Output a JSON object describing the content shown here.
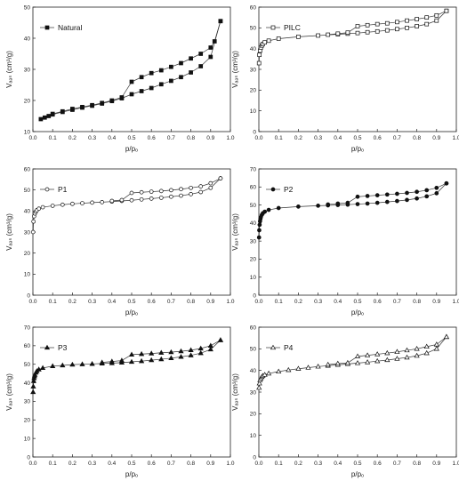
{
  "chart_data": [
    {
      "type": "line",
      "legend": "Natural",
      "marker": "square",
      "filled": true,
      "xlabel": "p/pₒ",
      "ylabel": "Vₐₔₛ (cm³/g)",
      "xlim": [
        0.0,
        1.0
      ],
      "ylim": [
        10,
        50
      ],
      "xticks": [
        "0.0",
        "0.1",
        "0.2",
        "0.3",
        "0.4",
        "0.5",
        "0.6",
        "0.7",
        "0.8",
        "0.9",
        "1.0"
      ],
      "yticks": [
        "10",
        "20",
        "30",
        "40",
        "50"
      ],
      "series": [
        {
          "name": "Natural",
          "x": [
            0.04,
            0.06,
            0.08,
            0.1,
            0.15,
            0.2,
            0.25,
            0.3,
            0.35,
            0.4,
            0.45,
            0.5,
            0.55,
            0.6,
            0.65,
            0.7,
            0.75,
            0.8,
            0.85,
            0.9,
            0.95
          ],
          "y": [
            14,
            14.5,
            15,
            15.5,
            16.3,
            17,
            17.7,
            18.3,
            19,
            19.8,
            20.7,
            22,
            23,
            24,
            25.2,
            26.3,
            27.5,
            29,
            31,
            34,
            45.5
          ]
        },
        {
          "name": "",
          "x": [
            0.95,
            0.92,
            0.9,
            0.85,
            0.8,
            0.75,
            0.7,
            0.65,
            0.6,
            0.55,
            0.5,
            0.45,
            0.4,
            0.35,
            0.3,
            0.25,
            0.2,
            0.15,
            0.1
          ],
          "y": [
            45.5,
            39,
            37,
            35,
            33.5,
            32,
            30.8,
            29.7,
            28.8,
            27.5,
            26,
            21,
            20,
            19.2,
            18.5,
            17.9,
            17.3,
            16.5,
            15.7
          ]
        }
      ]
    },
    {
      "type": "line",
      "legend": "PILC",
      "marker": "square",
      "filled": false,
      "xlabel": "p/pₒ",
      "ylabel": "Vₐₔₛ (cm³/g)",
      "xlim": [
        0.0,
        1.0
      ],
      "ylim": [
        0,
        60
      ],
      "xticks": [
        "0.0",
        "0.1",
        "0.2",
        "0.3",
        "0.4",
        "0.5",
        "0.6",
        "0.7",
        "0.8",
        "0.9",
        "1.0"
      ],
      "yticks": [
        "0",
        "10",
        "20",
        "30",
        "40",
        "50",
        "60"
      ],
      "series": [
        {
          "name": "PILC",
          "x": [
            0.001,
            0.003,
            0.006,
            0.01,
            0.015,
            0.02,
            0.03,
            0.05,
            0.1,
            0.2,
            0.3,
            0.4,
            0.45,
            0.5,
            0.55,
            0.6,
            0.65,
            0.7,
            0.75,
            0.8,
            0.85,
            0.9,
            0.95
          ],
          "y": [
            33,
            37,
            39,
            40.5,
            41.5,
            42.2,
            43,
            43.8,
            44.8,
            45.7,
            46.3,
            46.9,
            47.2,
            47.5,
            47.9,
            48.3,
            48.8,
            49.4,
            50,
            50.8,
            51.8,
            53.5,
            58.2
          ]
        },
        {
          "name": "",
          "x": [
            0.95,
            0.9,
            0.85,
            0.8,
            0.75,
            0.7,
            0.65,
            0.6,
            0.55,
            0.5,
            0.45,
            0.4,
            0.35
          ],
          "y": [
            58.2,
            56,
            55,
            54.2,
            53.5,
            52.8,
            52.2,
            51.8,
            51.3,
            50.8,
            47.7,
            47.2,
            46.7
          ]
        }
      ]
    },
    {
      "type": "line",
      "legend": "P1",
      "marker": "circle",
      "filled": false,
      "xlabel": "p/pₒ",
      "ylabel": "Vₐₔₛ (cm³/g)",
      "xlim": [
        0.0,
        1.0
      ],
      "ylim": [
        0,
        60
      ],
      "xticks": [
        "0.0",
        "0.1",
        "0.2",
        "0.3",
        "0.4",
        "0.5",
        "0.6",
        "0.7",
        "0.8",
        "0.9",
        "1.0"
      ],
      "yticks": [
        "0",
        "10",
        "20",
        "30",
        "40",
        "50",
        "60"
      ],
      "series": [
        {
          "name": "P1",
          "x": [
            0.001,
            0.003,
            0.006,
            0.01,
            0.015,
            0.02,
            0.03,
            0.05,
            0.1,
            0.15,
            0.2,
            0.25,
            0.3,
            0.35,
            0.4,
            0.45,
            0.5,
            0.55,
            0.6,
            0.65,
            0.7,
            0.75,
            0.8,
            0.85,
            0.9,
            0.95
          ],
          "y": [
            30,
            35,
            37.5,
            38.8,
            39.7,
            40.4,
            41.1,
            41.8,
            42.5,
            43,
            43.4,
            43.7,
            44,
            44.2,
            44.5,
            44.8,
            45.1,
            45.5,
            45.9,
            46.3,
            46.8,
            47.3,
            48,
            49,
            51,
            55.5
          ]
        },
        {
          "name": "",
          "x": [
            0.95,
            0.9,
            0.85,
            0.8,
            0.75,
            0.7,
            0.65,
            0.6,
            0.55,
            0.5,
            0.45,
            0.4
          ],
          "y": [
            55.5,
            53.2,
            51.7,
            51,
            50.4,
            49.9,
            49.5,
            49.2,
            48.9,
            48.6,
            45.2,
            44.8
          ]
        }
      ]
    },
    {
      "type": "line",
      "legend": "P2",
      "marker": "circle",
      "filled": true,
      "xlabel": "p/pₒ",
      "ylabel": "Vₐₔₛ (cm³/g)",
      "xlim": [
        0.0,
        1.0
      ],
      "ylim": [
        0,
        70
      ],
      "xticks": [
        "0.0",
        "0.1",
        "0.2",
        "0.3",
        "0.4",
        "0.5",
        "0.6",
        "0.7",
        "0.8",
        "0.9",
        "1.0"
      ],
      "yticks": [
        "0",
        "10",
        "20",
        "30",
        "40",
        "50",
        "60",
        "70"
      ],
      "series": [
        {
          "name": "P2",
          "x": [
            0.001,
            0.002,
            0.004,
            0.006,
            0.008,
            0.01,
            0.015,
            0.02,
            0.03,
            0.05,
            0.1,
            0.2,
            0.3,
            0.35,
            0.4,
            0.45,
            0.5,
            0.55,
            0.6,
            0.65,
            0.7,
            0.75,
            0.8,
            0.85,
            0.9,
            0.95
          ],
          "y": [
            32,
            36,
            39,
            41,
            42.3,
            43.2,
            44.5,
            45.4,
            46.3,
            47.3,
            48.3,
            49.1,
            49.6,
            49.8,
            50,
            50.2,
            50.5,
            50.8,
            51.2,
            51.7,
            52.2,
            52.8,
            53.6,
            54.8,
            56.5,
            62
          ]
        },
        {
          "name": "",
          "x": [
            0.95,
            0.9,
            0.85,
            0.8,
            0.75,
            0.7,
            0.65,
            0.6,
            0.55,
            0.5,
            0.45,
            0.4,
            0.35
          ],
          "y": [
            62,
            59.5,
            58.2,
            57.3,
            56.7,
            56.2,
            55.8,
            55.4,
            55,
            54.6,
            51.2,
            50.8,
            50.3
          ]
        }
      ]
    },
    {
      "type": "line",
      "legend": "P3",
      "marker": "triangle",
      "filled": true,
      "xlabel": "p/pₒ",
      "ylabel": "Vₐₔₛ (cm³/g)",
      "xlim": [
        0.0,
        1.0
      ],
      "ylim": [
        0,
        70
      ],
      "xticks": [
        "0.0",
        "0.1",
        "0.2",
        "0.3",
        "0.4",
        "0.5",
        "0.6",
        "0.7",
        "0.8",
        "0.9",
        "1.0"
      ],
      "yticks": [
        "0",
        "10",
        "20",
        "30",
        "40",
        "50",
        "60",
        "70"
      ],
      "series": [
        {
          "name": "P3",
          "x": [
            0.001,
            0.002,
            0.004,
            0.006,
            0.008,
            0.01,
            0.015,
            0.02,
            0.03,
            0.05,
            0.1,
            0.15,
            0.2,
            0.25,
            0.3,
            0.35,
            0.4,
            0.45,
            0.5,
            0.55,
            0.6,
            0.65,
            0.7,
            0.75,
            0.8,
            0.85,
            0.9,
            0.95
          ],
          "y": [
            35,
            38,
            41,
            42.5,
            43.5,
            44.3,
            45.5,
            46.3,
            47.2,
            48,
            49,
            49.4,
            49.8,
            50,
            50.2,
            50.4,
            50.6,
            50.9,
            51.3,
            51.7,
            52.2,
            52.7,
            53.3,
            54,
            54.8,
            56,
            58,
            63
          ]
        },
        {
          "name": "",
          "x": [
            0.95,
            0.9,
            0.85,
            0.8,
            0.75,
            0.7,
            0.65,
            0.6,
            0.55,
            0.5,
            0.45,
            0.4,
            0.35
          ],
          "y": [
            63,
            60,
            58.5,
            57.6,
            57,
            56.5,
            56.2,
            55.8,
            55.5,
            55.2,
            52,
            51.5,
            51
          ]
        }
      ]
    },
    {
      "type": "line",
      "legend": "P4",
      "marker": "triangle",
      "filled": false,
      "xlabel": "p/pₒ",
      "ylabel": "Vₐₔₛ (cm³/g)",
      "xlim": [
        0.0,
        1.0
      ],
      "ylim": [
        0,
        60
      ],
      "xticks": [
        "0.0",
        "0.1",
        "0.2",
        "0.3",
        "0.4",
        "0.5",
        "0.6",
        "0.7",
        "0.8",
        "0.9",
        "1.0"
      ],
      "yticks": [
        "0",
        "10",
        "20",
        "30",
        "40",
        "50",
        "60"
      ],
      "series": [
        {
          "name": "P4",
          "x": [
            0.001,
            0.003,
            0.006,
            0.01,
            0.015,
            0.02,
            0.03,
            0.05,
            0.1,
            0.15,
            0.2,
            0.25,
            0.3,
            0.35,
            0.4,
            0.45,
            0.5,
            0.55,
            0.6,
            0.65,
            0.7,
            0.75,
            0.8,
            0.85,
            0.9,
            0.95
          ],
          "y": [
            32,
            34,
            35.5,
            36.3,
            37,
            37.5,
            38,
            38.6,
            39.5,
            40.2,
            40.8,
            41.3,
            41.8,
            42.2,
            42.6,
            43,
            43.4,
            43.8,
            44.3,
            44.8,
            45.4,
            46,
            46.8,
            48,
            50,
            55.5
          ]
        },
        {
          "name": "",
          "x": [
            0.95,
            0.9,
            0.85,
            0.8,
            0.75,
            0.7,
            0.65,
            0.6,
            0.55,
            0.5,
            0.45,
            0.4,
            0.35
          ],
          "y": [
            55.5,
            52,
            51,
            50,
            49.3,
            48.6,
            48,
            47.5,
            47,
            46.5,
            43.5,
            43.2,
            42.7
          ]
        }
      ]
    }
  ]
}
